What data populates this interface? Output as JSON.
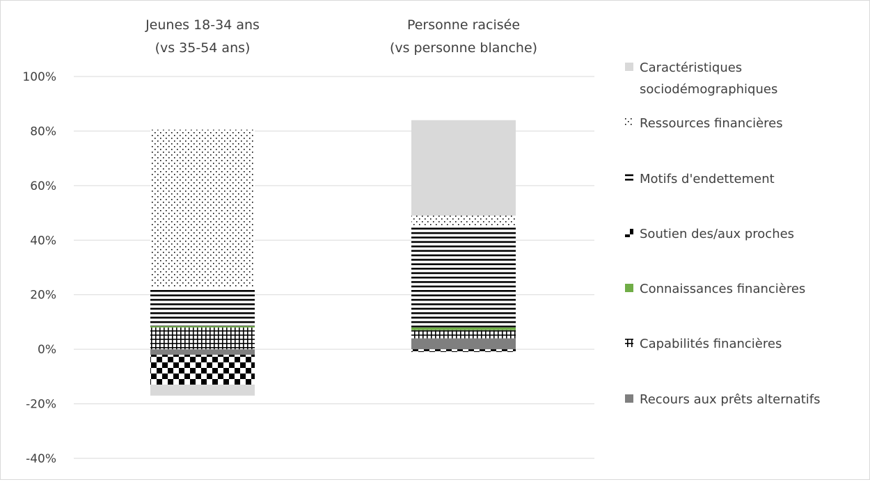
{
  "chart_data": {
    "type": "bar",
    "stacked": true,
    "categories": [
      [
        "Jeunes 18-34 ans",
        "(vs 35-54 ans)"
      ],
      [
        "Personne racisée",
        "(vs personne blanche)"
      ]
    ],
    "ylim": [
      -0.4,
      1.0
    ],
    "yticks": [
      -0.4,
      -0.2,
      0,
      0.2,
      0.4,
      0.6,
      0.8,
      1.0
    ],
    "ytick_labels": [
      "-40%",
      "-20%",
      "0%",
      "20%",
      "40%",
      "60%",
      "80%",
      "100%"
    ],
    "grid": true,
    "legend_position": "right",
    "series": [
      {
        "name": "Recours aux prêts alternatifs",
        "key": "recours",
        "color": "#7f7f7f",
        "pattern": "solid",
        "values": [
          -0.02,
          0.04
        ]
      },
      {
        "name": "Capabilités financières",
        "key": "capabilites",
        "color": "#000000",
        "pattern": "grid",
        "values": [
          0.08,
          0.03
        ]
      },
      {
        "name": "Connaissances financières",
        "key": "connaissances",
        "color": "#70ad47",
        "pattern": "solid",
        "values": [
          0.005,
          0.01
        ]
      },
      {
        "name": "Soutien des/aux proches",
        "key": "soutien",
        "color": "#000000",
        "pattern": "checker",
        "values": [
          -0.11,
          -0.01
        ]
      },
      {
        "name": "Motifs d'endettement",
        "key": "motifs",
        "color": "#000000",
        "pattern": "hlines",
        "values": [
          0.14,
          0.37
        ]
      },
      {
        "name": "Ressources financières",
        "key": "ressources",
        "color": "#000000",
        "pattern": "dots",
        "values": [
          0.58,
          0.04
        ]
      },
      {
        "name": "Caractéristiques sociodémographiques",
        "key": "caracteristiques",
        "color": "#d9d9d9",
        "pattern": "solid",
        "values": [
          -0.04,
          0.35
        ]
      }
    ],
    "legend": [
      [
        "Caractéristiques",
        "sociodémographiques"
      ],
      [
        "Ressources financières"
      ],
      [
        "Motifs d'endettement"
      ],
      [
        "Soutien des/aux proches"
      ],
      [
        "Connaissances financières"
      ],
      [
        "Capabilités financières"
      ],
      [
        "Recours aux prêts alternatifs"
      ]
    ]
  }
}
